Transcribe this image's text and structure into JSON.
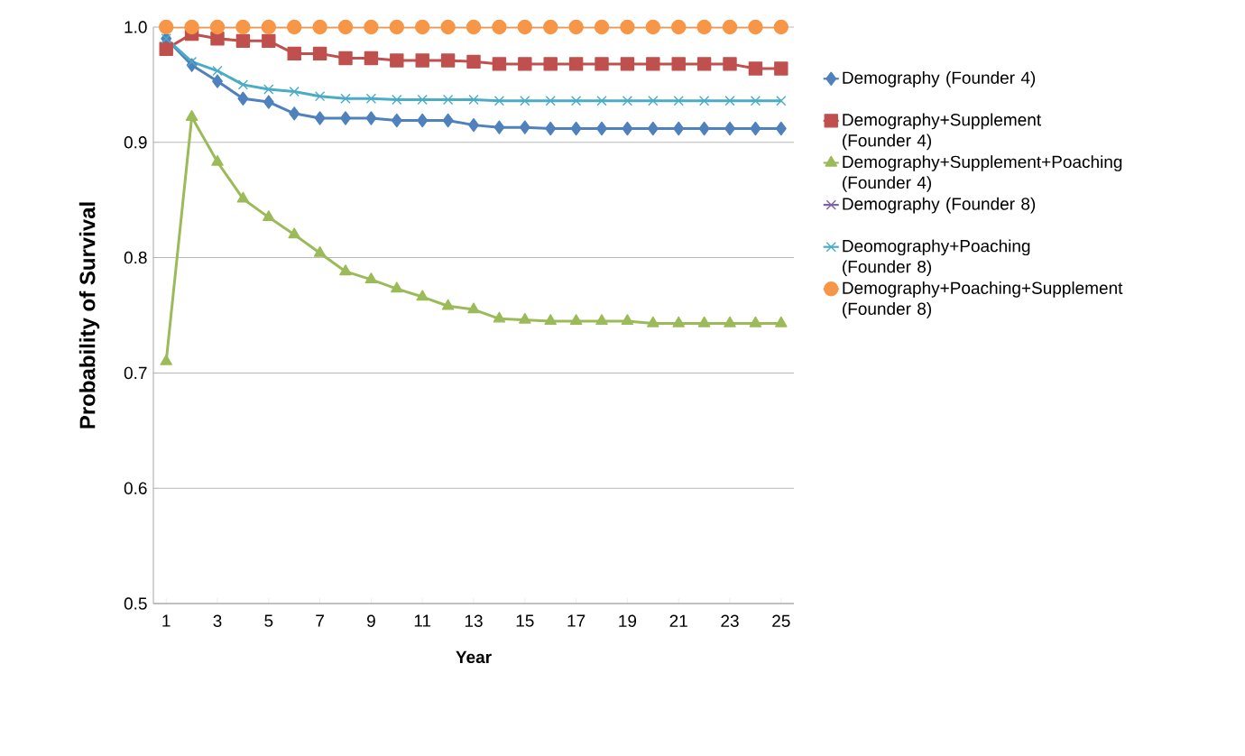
{
  "chart_data": {
    "type": "line",
    "xlabel": "Year",
    "ylabel": "Probability of Survival",
    "x": [
      1,
      2,
      3,
      4,
      5,
      6,
      7,
      8,
      9,
      10,
      11,
      12,
      13,
      14,
      15,
      16,
      17,
      18,
      19,
      20,
      21,
      22,
      23,
      24,
      25
    ],
    "xlim": [
      0.5,
      25.5
    ],
    "xticks": [
      1,
      3,
      5,
      7,
      9,
      11,
      13,
      15,
      17,
      19,
      21,
      23,
      25
    ],
    "ylim": [
      0.5,
      1.0
    ],
    "yticks": [
      0.5,
      0.6,
      0.7,
      0.8,
      0.9,
      {
        "value": 1.0,
        "label": "1.0"
      }
    ],
    "grid": "y",
    "legend": "right",
    "series": [
      {
        "name": "Demography (Founder 4)",
        "color": "#4f81bd",
        "marker": "diamond",
        "values": [
          0.99,
          0.967,
          0.953,
          0.938,
          0.935,
          0.925,
          0.921,
          0.921,
          0.921,
          0.919,
          0.919,
          0.919,
          0.915,
          0.913,
          0.913,
          0.912,
          0.912,
          0.912,
          0.912,
          0.912,
          0.912,
          0.912,
          0.912,
          0.912,
          0.912
        ]
      },
      {
        "name": "Demography+Supplement (Founder 4)",
        "color": "#c0504d",
        "marker": "square",
        "values": [
          0.981,
          0.994,
          0.99,
          0.988,
          0.988,
          0.977,
          0.977,
          0.973,
          0.973,
          0.971,
          0.971,
          0.971,
          0.97,
          0.968,
          0.968,
          0.968,
          0.968,
          0.968,
          0.968,
          0.968,
          0.968,
          0.968,
          0.968,
          0.964,
          0.964
        ]
      },
      {
        "name": "Demography+Supplement+Poaching (Founder 4)",
        "color": "#9bbb59",
        "marker": "triangle",
        "values": [
          0.71,
          0.922,
          0.883,
          0.851,
          0.835,
          0.82,
          0.804,
          0.788,
          0.781,
          0.773,
          0.766,
          0.758,
          0.755,
          0.747,
          0.746,
          0.745,
          0.745,
          0.745,
          0.745,
          0.743,
          0.743,
          0.743,
          0.743,
          0.743,
          0.743
        ]
      },
      {
        "name": "Demography (Founder 8)",
        "color": "#8064a2",
        "marker": "cross",
        "values": [
          null,
          null,
          null,
          null,
          null,
          null,
          null,
          null,
          null,
          null,
          null,
          null,
          null,
          null,
          null,
          null,
          null,
          null,
          null,
          null,
          null,
          null,
          null,
          null,
          null
        ]
      },
      {
        "name": "Deomography+Poaching (Founder 8)",
        "color": "#4bacc6",
        "marker": "cross",
        "values": [
          0.99,
          0.97,
          0.962,
          0.95,
          0.946,
          0.944,
          0.94,
          0.938,
          0.938,
          0.937,
          0.937,
          0.937,
          0.937,
          0.936,
          0.936,
          0.936,
          0.936,
          0.936,
          0.936,
          0.936,
          0.936,
          0.936,
          0.936,
          0.936,
          0.936
        ]
      },
      {
        "name": "Demography+Poaching+Supplement (Founder 8)",
        "color": "#f79646",
        "marker": "circle",
        "values": [
          1.0,
          1.0,
          1.0,
          1.0,
          1.0,
          1.0,
          1.0,
          1.0,
          1.0,
          1.0,
          1.0,
          1.0,
          1.0,
          1.0,
          1.0,
          1.0,
          1.0,
          1.0,
          1.0,
          1.0,
          1.0,
          1.0,
          1.0,
          1.0,
          1.0
        ]
      }
    ]
  }
}
